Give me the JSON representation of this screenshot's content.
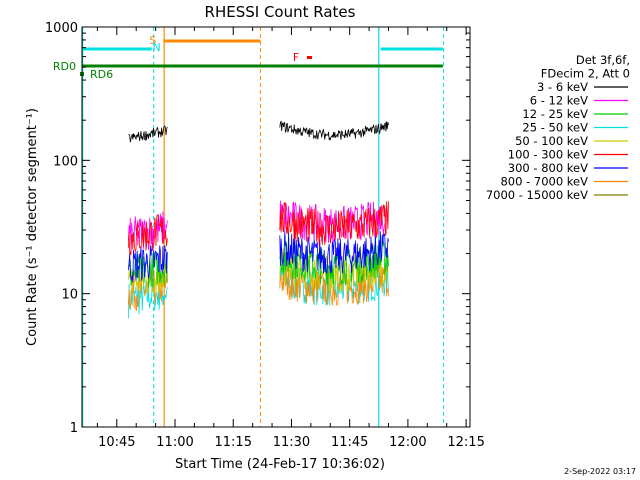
{
  "chart_data": {
    "type": "line",
    "title": "RHESSI Count Rates",
    "xlabel": "Start Time (24-Feb-17 10:36:02)",
    "ylabel": "Count Rate (s⁻¹ detector segment⁻¹)",
    "y_scale": "log",
    "ylim": [
      1,
      1000
    ],
    "xlim_minutes": [
      "10:36",
      "12:16"
    ],
    "x_ticks": [
      "10:45",
      "11:00",
      "11:15",
      "11:30",
      "11:45",
      "12:00",
      "12:15"
    ],
    "y_ticks": [
      "1",
      "10",
      "100",
      "1000"
    ],
    "legend_header": [
      "Det 3f,6f,",
      "FDecim 2, Att 0"
    ],
    "legend_placement": "right",
    "series": [
      {
        "name": "3 - 6 keV",
        "color": "#000000",
        "segments": [
          {
            "start": "10:48",
            "end": "10:58",
            "level": 145
          },
          {
            "start": "11:27",
            "end": "11:55",
            "level": 155
          }
        ]
      },
      {
        "name": "6 - 12 keV",
        "color": "#ff00ff",
        "segments": [
          {
            "start": "10:48",
            "end": "10:58",
            "level": 27
          },
          {
            "start": "11:27",
            "end": "11:55",
            "level": 33
          }
        ]
      },
      {
        "name": "12 - 25 keV",
        "color": "#00cc00",
        "segments": [
          {
            "start": "10:48",
            "end": "10:58",
            "level": 14
          },
          {
            "start": "11:27",
            "end": "11:55",
            "level": 16
          }
        ]
      },
      {
        "name": "25 - 50 keV",
        "color": "#00e0e0",
        "segments": [
          {
            "start": "10:48",
            "end": "10:58",
            "level": 9
          },
          {
            "start": "11:27",
            "end": "11:55",
            "level": 11
          }
        ]
      },
      {
        "name": "50 - 100 keV",
        "color": "#cccc00",
        "segments": [
          {
            "start": "10:48",
            "end": "10:58",
            "level": 12
          },
          {
            "start": "11:27",
            "end": "11:55",
            "level": 14
          }
        ]
      },
      {
        "name": "100 - 300 keV",
        "color": "#ff0000",
        "segments": [
          {
            "start": "10:48",
            "end": "10:58",
            "level": 26
          },
          {
            "start": "11:27",
            "end": "11:55",
            "level": 31
          }
        ]
      },
      {
        "name": "300 - 800 keV",
        "color": "#0000ff",
        "segments": [
          {
            "start": "10:48",
            "end": "10:58",
            "level": 16
          },
          {
            "start": "11:27",
            "end": "11:55",
            "level": 19
          }
        ]
      },
      {
        "name": "800 - 7000 keV",
        "color": "#ff8800",
        "segments": [
          {
            "start": "10:48",
            "end": "10:58",
            "level": 10
          },
          {
            "start": "11:27",
            "end": "11:55",
            "level": 11
          }
        ]
      },
      {
        "name": "7000 - 15000 keV",
        "color": "#808000",
        "segments": []
      }
    ],
    "flags": [
      {
        "label": "RD0",
        "color": "#008000"
      },
      {
        "label": "RD6",
        "color": "#008000"
      },
      {
        "label": "S",
        "color": "#ff8800"
      },
      {
        "label": "N",
        "color": "#00e0e0"
      },
      {
        "label": "F",
        "color": "#ff0000"
      }
    ],
    "timestamp": "2-Sep-2022 03:17"
  }
}
